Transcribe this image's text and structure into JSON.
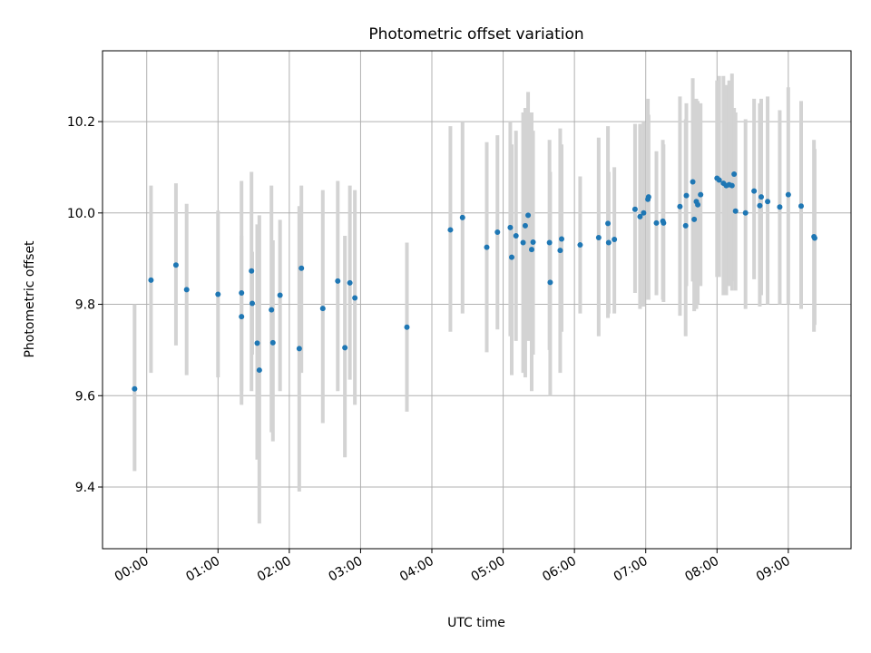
{
  "chart_data": {
    "type": "scatter",
    "title": "Photometric offset variation",
    "xlabel": "UTC time",
    "ylabel": "Photometric offset",
    "xlim": [
      -0.62,
      9.88
    ],
    "ylim": [
      9.265,
      10.355
    ],
    "grid": true,
    "x_ticks": [
      {
        "value": 0,
        "label": "00:00"
      },
      {
        "value": 1,
        "label": "01:00"
      },
      {
        "value": 2,
        "label": "02:00"
      },
      {
        "value": 3,
        "label": "03:00"
      },
      {
        "value": 4,
        "label": "04:00"
      },
      {
        "value": 5,
        "label": "05:00"
      },
      {
        "value": 6,
        "label": "06:00"
      },
      {
        "value": 7,
        "label": "07:00"
      },
      {
        "value": 8,
        "label": "08:00"
      },
      {
        "value": 9,
        "label": "09:00"
      }
    ],
    "y_ticks": [
      {
        "value": 9.4,
        "label": "9.4"
      },
      {
        "value": 9.6,
        "label": "9.6"
      },
      {
        "value": 9.8,
        "label": "9.8"
      },
      {
        "value": 10.0,
        "label": "10.0"
      },
      {
        "value": 10.2,
        "label": "10.2"
      }
    ],
    "colors": {
      "point": "#1f77b4",
      "errorbar": "#d3d3d3",
      "grid": "#b0b0b0"
    },
    "series": [
      {
        "name": "offset",
        "x": [
          -0.17,
          0.06,
          0.41,
          0.56,
          1.0,
          1.33,
          1.33,
          1.47,
          1.48,
          1.55,
          1.58,
          1.75,
          1.77,
          1.87,
          2.14,
          2.17,
          2.47,
          2.68,
          2.78,
          2.85,
          2.92,
          3.65,
          4.26,
          4.43,
          4.77,
          4.92,
          5.1,
          5.12,
          5.18,
          5.28,
          5.31,
          5.35,
          5.4,
          5.42,
          5.65,
          5.66,
          5.8,
          5.82,
          6.08,
          6.34,
          6.47,
          6.48,
          6.56,
          6.85,
          6.92,
          6.97,
          7.03,
          7.04,
          7.15,
          7.24,
          7.25,
          7.48,
          7.56,
          7.57,
          7.66,
          7.68,
          7.71,
          7.73,
          7.77,
          8.0,
          8.03,
          8.09,
          8.13,
          8.17,
          8.21,
          8.24,
          8.26,
          8.4,
          8.52,
          8.6,
          8.62,
          8.71,
          8.88,
          9.0,
          9.18,
          9.36,
          9.37
        ],
        "y": [
          9.615,
          9.853,
          9.886,
          9.832,
          9.822,
          9.825,
          9.773,
          9.873,
          9.802,
          9.715,
          9.656,
          9.788,
          9.716,
          9.82,
          9.703,
          9.879,
          9.791,
          9.851,
          9.705,
          9.847,
          9.814,
          9.75,
          9.963,
          9.99,
          9.925,
          9.958,
          9.968,
          9.903,
          9.95,
          9.935,
          9.972,
          9.995,
          9.92,
          9.936,
          9.935,
          9.848,
          9.918,
          9.943,
          9.93,
          9.946,
          9.977,
          9.935,
          9.942,
          10.008,
          9.992,
          10.0,
          10.03,
          10.035,
          9.978,
          9.982,
          9.978,
          10.014,
          9.972,
          10.038,
          10.068,
          9.986,
          10.025,
          10.018,
          10.04,
          10.076,
          10.072,
          10.065,
          10.06,
          10.062,
          10.06,
          10.085,
          10.004,
          10.0,
          10.048,
          10.016,
          10.035,
          10.025,
          10.013,
          10.04,
          10.015,
          9.948,
          9.945
        ],
        "err_low": [
          9.435,
          9.65,
          9.71,
          9.645,
          9.64,
          9.58,
          9.61,
          9.61,
          9.69,
          9.46,
          9.32,
          9.52,
          9.5,
          9.61,
          9.39,
          9.65,
          9.54,
          9.61,
          9.465,
          9.635,
          9.58,
          9.565,
          9.74,
          9.78,
          9.695,
          9.745,
          9.73,
          9.645,
          9.72,
          9.65,
          9.64,
          9.72,
          9.61,
          9.69,
          9.7,
          9.6,
          9.65,
          9.74,
          9.78,
          9.73,
          9.77,
          9.78,
          9.78,
          9.825,
          9.79,
          9.795,
          9.81,
          9.81,
          9.82,
          9.81,
          9.805,
          9.775,
          9.73,
          9.84,
          9.85,
          9.785,
          9.79,
          9.8,
          9.84,
          9.86,
          9.86,
          9.82,
          9.82,
          9.84,
          9.83,
          9.85,
          9.83,
          9.79,
          9.855,
          9.795,
          9.82,
          9.8,
          9.8,
          9.8,
          9.79,
          9.74,
          9.755
        ],
        "err_high": [
          9.8,
          10.06,
          10.065,
          10.02,
          10.005,
          10.07,
          9.95,
          10.09,
          9.915,
          9.975,
          9.995,
          10.06,
          9.94,
          9.985,
          10.015,
          10.06,
          10.05,
          10.07,
          9.95,
          10.06,
          10.05,
          9.935,
          10.19,
          10.2,
          10.155,
          10.17,
          10.2,
          10.15,
          10.18,
          10.22,
          10.23,
          10.265,
          10.22,
          10.18,
          10.16,
          10.09,
          10.185,
          10.15,
          10.08,
          10.165,
          10.19,
          10.09,
          10.1,
          10.195,
          10.195,
          10.2,
          10.25,
          10.215,
          10.135,
          10.16,
          10.15,
          10.255,
          10.205,
          10.24,
          10.295,
          10.2,
          10.25,
          10.245,
          10.24,
          10.29,
          10.3,
          10.3,
          10.28,
          10.29,
          10.305,
          10.23,
          10.22,
          10.205,
          10.25,
          10.24,
          10.25,
          10.255,
          10.225,
          10.275,
          10.245,
          10.16,
          10.14
        ]
      }
    ]
  }
}
